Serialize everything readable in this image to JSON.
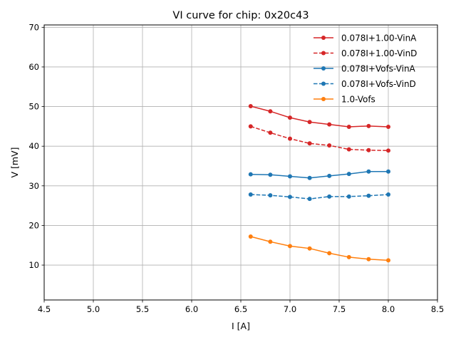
{
  "chart_data": {
    "type": "line",
    "title": "VI curve for chip: 0x20c43",
    "xlabel": "I [A]",
    "ylabel": "V [mV]",
    "xlim": [
      4.5,
      8.5
    ],
    "ylim": [
      1.2,
      70.6
    ],
    "xticks": [
      4.5,
      5.0,
      5.5,
      6.0,
      6.5,
      7.0,
      7.5,
      8.0,
      8.5
    ],
    "xtick_labels": [
      "4.5",
      "5.0",
      "5.5",
      "6.0",
      "6.5",
      "7.0",
      "7.5",
      "8.0",
      "8.5"
    ],
    "yticks": [
      10,
      20,
      30,
      40,
      50,
      60,
      70
    ],
    "ytick_labels": [
      "10",
      "20",
      "30",
      "40",
      "50",
      "60",
      "70"
    ],
    "grid": true,
    "legend_position": "top-right",
    "x": [
      6.6,
      6.8,
      7.0,
      7.2,
      7.4,
      7.6,
      7.8,
      8.0
    ],
    "series": [
      {
        "name": "0.078I+1.00-VinA",
        "color": "#d62728",
        "dashed": false,
        "values": [
          50.1,
          48.8,
          47.2,
          46.1,
          45.5,
          44.9,
          45.1,
          44.9
        ]
      },
      {
        "name": "0.078I+1.00-VinD",
        "color": "#d62728",
        "dashed": true,
        "values": [
          45.0,
          43.4,
          41.9,
          40.7,
          40.2,
          39.2,
          39.0,
          38.9
        ]
      },
      {
        "name": "0.078I+Vofs-VinA",
        "color": "#1f77b4",
        "dashed": false,
        "values": [
          32.9,
          32.8,
          32.4,
          32.0,
          32.5,
          33.0,
          33.6,
          33.6
        ]
      },
      {
        "name": "0.078I+Vofs-VinD",
        "color": "#1f77b4",
        "dashed": true,
        "values": [
          27.8,
          27.6,
          27.2,
          26.7,
          27.3,
          27.3,
          27.5,
          27.8
        ]
      },
      {
        "name": "1.0-Vofs",
        "color": "#ff7f0e",
        "dashed": false,
        "values": [
          17.2,
          15.9,
          14.8,
          14.2,
          13.0,
          12.0,
          11.5,
          11.2
        ]
      }
    ]
  }
}
